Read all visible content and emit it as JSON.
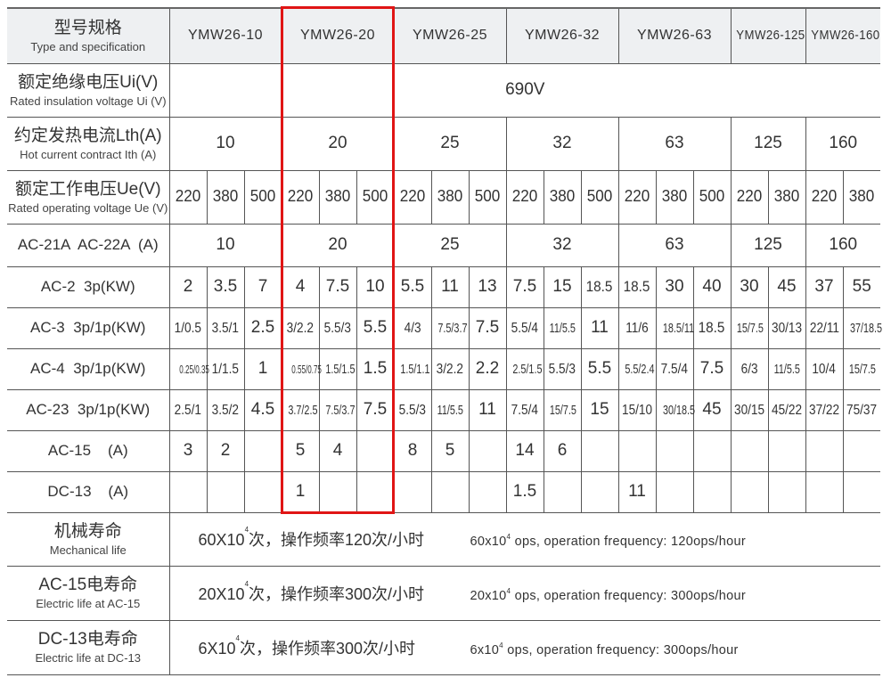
{
  "table": {
    "rows": [
      {
        "key": "header",
        "label_cn": "型号规格",
        "label_en": "Type and specification",
        "cells": [
          {
            "text": "YMW26-10",
            "span": 3
          },
          {
            "text": "YMW26-20",
            "span": 3
          },
          {
            "text": "YMW26-25",
            "span": 3
          },
          {
            "text": "YMW26-32",
            "span": 3
          },
          {
            "text": "YMW26-63",
            "span": 3
          },
          {
            "text": "YMW26-125",
            "span": 2
          },
          {
            "text": "YMW26-160",
            "span": 2
          }
        ]
      },
      {
        "key": "ui",
        "label_cn": "额定绝缘电压Ui(V)",
        "label_en": "Rated insulation voltage Ui (V)",
        "cells": [
          {
            "text": "690V",
            "span": 19
          }
        ]
      },
      {
        "key": "lth",
        "label_cn": "约定发热电流Lth(A)",
        "label_en": "Hot current contract Ith (A)",
        "cells": [
          {
            "text": "10",
            "span": 3
          },
          {
            "text": "20",
            "span": 3
          },
          {
            "text": "25",
            "span": 3
          },
          {
            "text": "32",
            "span": 3
          },
          {
            "text": "63",
            "span": 3
          },
          {
            "text": "125",
            "span": 2
          },
          {
            "text": "160",
            "span": 2
          }
        ]
      },
      {
        "key": "ue",
        "label_cn": "额定工作电压Ue(V)",
        "label_en": "Rated operating voltage Ue (V)",
        "cells": [
          {
            "text": "220"
          },
          {
            "text": "380"
          },
          {
            "text": "500"
          },
          {
            "text": "220"
          },
          {
            "text": "380"
          },
          {
            "text": "500"
          },
          {
            "text": "220"
          },
          {
            "text": "380"
          },
          {
            "text": "500"
          },
          {
            "text": "220"
          },
          {
            "text": "380"
          },
          {
            "text": "500"
          },
          {
            "text": "220"
          },
          {
            "text": "380"
          },
          {
            "text": "500"
          },
          {
            "text": "220"
          },
          {
            "text": "380"
          },
          {
            "text": "220"
          },
          {
            "text": "380"
          }
        ]
      },
      {
        "key": "ac21",
        "label": "AC-21A  AC-22A  (A)",
        "cells": [
          {
            "text": "10",
            "span": 3
          },
          {
            "text": "20",
            "span": 3
          },
          {
            "text": "25",
            "span": 3
          },
          {
            "text": "32",
            "span": 3
          },
          {
            "text": "63",
            "span": 3
          },
          {
            "text": "125",
            "span": 2
          },
          {
            "text": "160",
            "span": 2
          }
        ]
      },
      {
        "key": "ac2",
        "label": "AC-2  3p(KW)",
        "cells": [
          {
            "text": "2"
          },
          {
            "text": "3.5"
          },
          {
            "text": "7"
          },
          {
            "text": "4"
          },
          {
            "text": "7.5"
          },
          {
            "text": "10"
          },
          {
            "text": "5.5"
          },
          {
            "text": "11"
          },
          {
            "text": "13"
          },
          {
            "text": "7.5"
          },
          {
            "text": "15"
          },
          {
            "text": "18.5"
          },
          {
            "text": "18.5"
          },
          {
            "text": "30"
          },
          {
            "text": "40"
          },
          {
            "text": "30"
          },
          {
            "text": "45"
          },
          {
            "text": "37"
          },
          {
            "text": "55"
          }
        ]
      },
      {
        "key": "ac3",
        "label": "AC-3  3p/1p(KW)",
        "cells": [
          {
            "text": "1/0.5"
          },
          {
            "text": "3.5/1"
          },
          {
            "text": "2.5"
          },
          {
            "text": "3/2.2"
          },
          {
            "text": "5.5/3"
          },
          {
            "text": "5.5"
          },
          {
            "text": "4/3"
          },
          {
            "text": "7.5/3.7"
          },
          {
            "text": "7.5"
          },
          {
            "text": "5.5/4"
          },
          {
            "text": "11/5.5"
          },
          {
            "text": "11"
          },
          {
            "text": "11/6"
          },
          {
            "text": "18.5/11"
          },
          {
            "text": "18.5"
          },
          {
            "text": "15/7.5"
          },
          {
            "text": "30/13"
          },
          {
            "text": "22/11"
          },
          {
            "text": "37/18.5"
          }
        ]
      },
      {
        "key": "ac4",
        "label": "AC-4  3p/1p(KW)",
        "cells": [
          {
            "text": "0.25/0.35"
          },
          {
            "text": "1/1.5"
          },
          {
            "text": "1"
          },
          {
            "text": "0.55/0.75"
          },
          {
            "text": "1.5/1.5"
          },
          {
            "text": "1.5"
          },
          {
            "text": "1.5/1.1"
          },
          {
            "text": "3/2.2"
          },
          {
            "text": "2.2"
          },
          {
            "text": "2.5/1.5"
          },
          {
            "text": "5.5/3"
          },
          {
            "text": "5.5"
          },
          {
            "text": "5.5/2.4"
          },
          {
            "text": "7.5/4"
          },
          {
            "text": "7.5"
          },
          {
            "text": "6/3"
          },
          {
            "text": "11/5.5"
          },
          {
            "text": "10/4"
          },
          {
            "text": "15/7.5"
          }
        ]
      },
      {
        "key": "ac23",
        "label": "AC-23  3p/1p(KW)",
        "cells": [
          {
            "text": "2.5/1"
          },
          {
            "text": "3.5/2"
          },
          {
            "text": "4.5"
          },
          {
            "text": "3.7/2.5"
          },
          {
            "text": "7.5/3.7"
          },
          {
            "text": "7.5"
          },
          {
            "text": "5.5/3"
          },
          {
            "text": "11/5.5"
          },
          {
            "text": "11"
          },
          {
            "text": "7.5/4"
          },
          {
            "text": "15/7.5"
          },
          {
            "text": "15"
          },
          {
            "text": "15/10"
          },
          {
            "text": "30/18.5"
          },
          {
            "text": "45"
          },
          {
            "text": "30/15"
          },
          {
            "text": "45/22"
          },
          {
            "text": "37/22"
          },
          {
            "text": "75/37"
          }
        ]
      },
      {
        "key": "ac15",
        "label": "AC-15    (A)",
        "cells": [
          {
            "text": "3"
          },
          {
            "text": "2"
          },
          {
            "text": ""
          },
          {
            "text": "5"
          },
          {
            "text": "4"
          },
          {
            "text": ""
          },
          {
            "text": "8"
          },
          {
            "text": "5"
          },
          {
            "text": ""
          },
          {
            "text": "14"
          },
          {
            "text": "6"
          },
          {
            "text": ""
          },
          {
            "text": ""
          },
          {
            "text": ""
          },
          {
            "text": ""
          },
          {
            "text": ""
          },
          {
            "text": ""
          },
          {
            "text": ""
          },
          {
            "text": ""
          }
        ]
      },
      {
        "key": "dc13",
        "label": "DC-13    (A)",
        "cells": [
          {
            "text": ""
          },
          {
            "text": ""
          },
          {
            "text": ""
          },
          {
            "text": "1"
          },
          {
            "text": ""
          },
          {
            "text": ""
          },
          {
            "text": ""
          },
          {
            "text": ""
          },
          {
            "text": ""
          },
          {
            "text": "1.5"
          },
          {
            "text": ""
          },
          {
            "text": ""
          },
          {
            "text": "11"
          },
          {
            "text": ""
          },
          {
            "text": ""
          },
          {
            "text": ""
          },
          {
            "text": ""
          },
          {
            "text": ""
          },
          {
            "text": ""
          }
        ]
      }
    ],
    "life_rows": [
      {
        "label_cn": "机械寿命",
        "label_en": "Mechanical life",
        "cn_pre": "60X10",
        "cn_sup": "4",
        "cn_post": "次，操作频率120次/小时",
        "en_pre": "60x10",
        "en_sup": "4",
        "en_post": " ops, operation frequency: 120ops/hour"
      },
      {
        "label_cn": "AC-15电寿命",
        "label_en": "Electric life at AC-15",
        "cn_pre": "20X10",
        "cn_sup": "4",
        "cn_post": "次，操作频率300次/小时",
        "en_pre": "20x10",
        "en_sup": "4",
        "en_post": " ops, operation frequency: 300ops/hour"
      },
      {
        "label_cn": "DC-13电寿命",
        "label_en": "Electric life at DC-13",
        "cn_pre": "6X10",
        "cn_sup": "4",
        "cn_post": "次，操作频率300次/小时",
        "en_pre": "6x10",
        "en_sup": "4",
        "en_post": " ops, operation frequency: 300ops/hour"
      }
    ],
    "highlight": {
      "column": "YMW26-20",
      "color": "#e01515"
    }
  }
}
